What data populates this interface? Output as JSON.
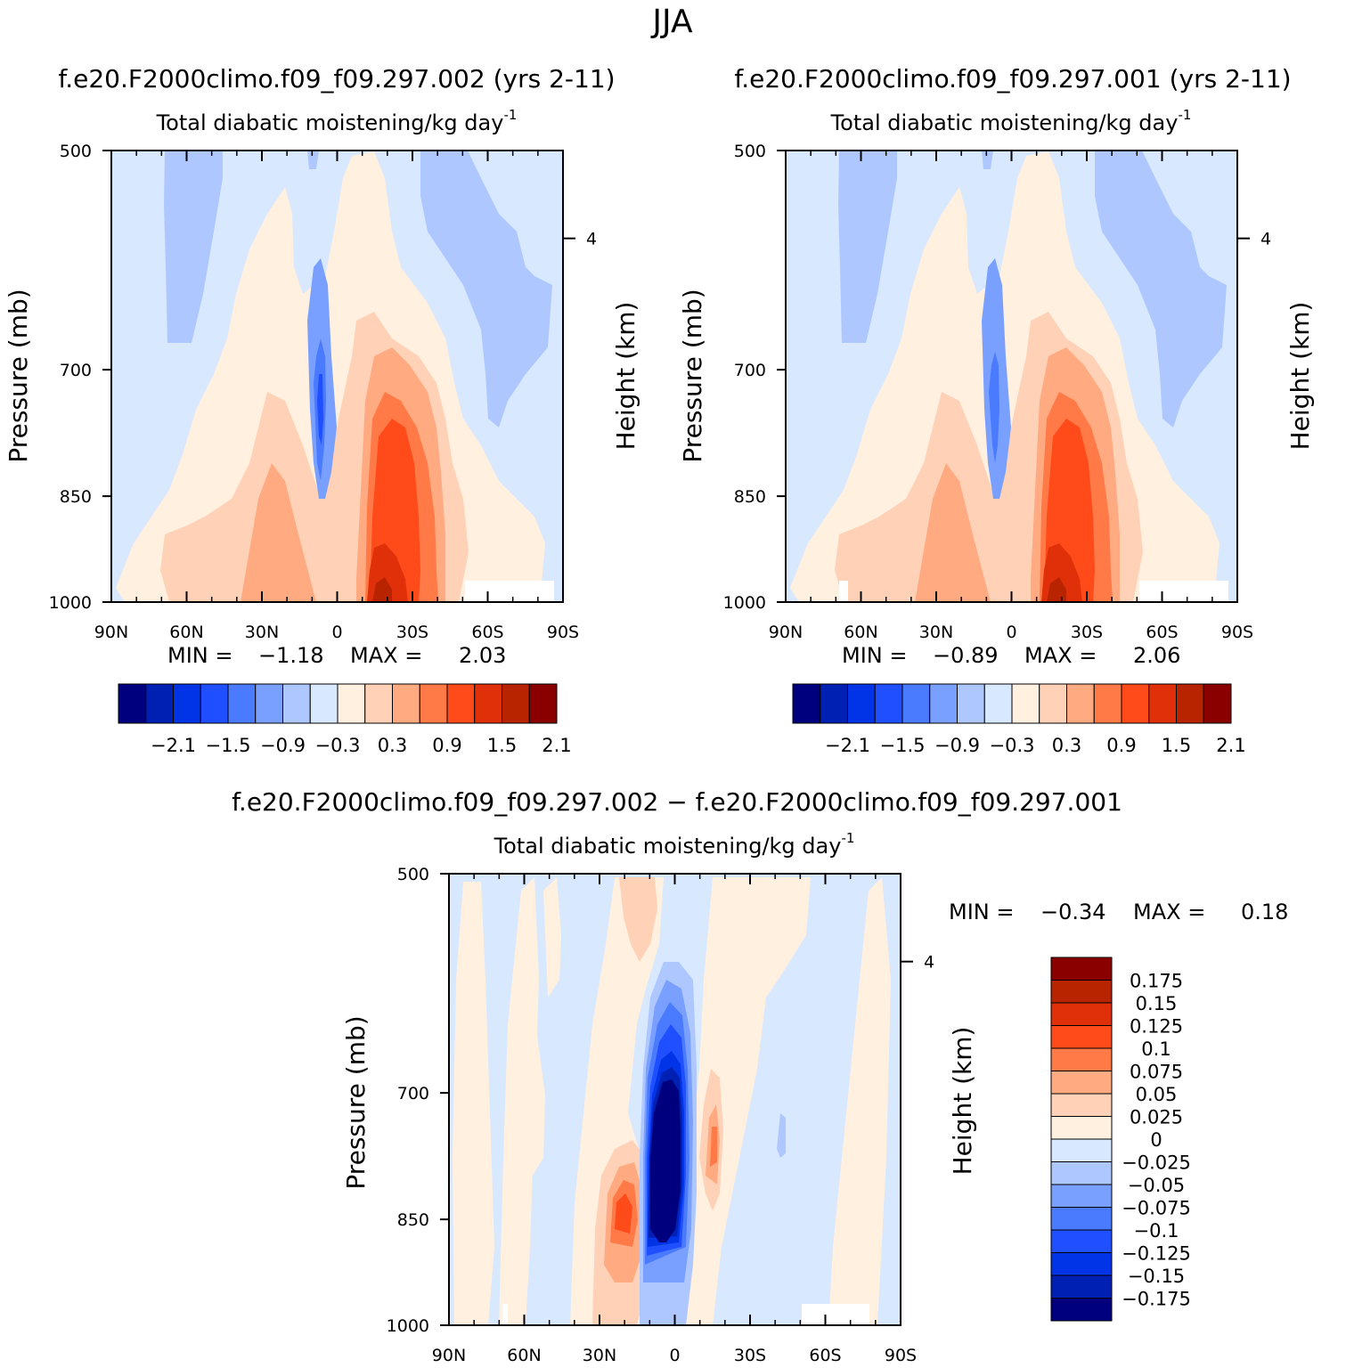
{
  "page_title": "JJA",
  "colors": {
    "main_levels": [
      "#00007f",
      "#0020b4",
      "#0034e6",
      "#1f4fff",
      "#4a7bff",
      "#7aa0ff",
      "#aec8ff",
      "#d8e8ff",
      "#fff0e0",
      "#ffd2b8",
      "#ffaa80",
      "#ff7a47",
      "#ff4a1a",
      "#e0300a",
      "#b82400",
      "#8a0000"
    ],
    "diff_levels": [
      "#00007f",
      "#0020b4",
      "#0034e6",
      "#1f4fff",
      "#4a7bff",
      "#7aa0ff",
      "#aec8ff",
      "#d8e8ff",
      "#fff0e0",
      "#ffd2b8",
      "#ffaa80",
      "#ff7a47",
      "#ff4a1a",
      "#e0300a",
      "#b82400",
      "#8a0000"
    ]
  },
  "chart_data": [
    {
      "type": "heatmap",
      "title": "f.e20.F2000climo.f09_f09.297.002 (yrs 2-11)",
      "subtitle": "Total diabatic moistening/kg day",
      "subtitle_exp": "-1",
      "xlabel": "",
      "ylabel": "Pressure (mb)",
      "ylabel_right": "Height (km)",
      "x_ticks": [
        "90N",
        "60N",
        "30N",
        "0",
        "30S",
        "60S",
        "90S"
      ],
      "y_ticks": [
        "500",
        "700",
        "850",
        "1000"
      ],
      "right_ticks": [
        "4"
      ],
      "ylim": [
        500,
        1000
      ],
      "min_label": "MIN =",
      "min_value": "−1.18",
      "max_label": "MAX =",
      "max_value": "2.03",
      "colorbar_labels": [
        "−2.1",
        "−1.5",
        "−0.9",
        "−0.3",
        "0.3",
        "0.9",
        "1.5",
        "2.1"
      ]
    },
    {
      "type": "heatmap",
      "title": "f.e20.F2000climo.f09_f09.297.001 (yrs 2-11)",
      "subtitle": "Total diabatic moistening/kg day",
      "subtitle_exp": "-1",
      "xlabel": "",
      "ylabel": "Pressure (mb)",
      "ylabel_right": "Height (km)",
      "x_ticks": [
        "90N",
        "60N",
        "30N",
        "0",
        "30S",
        "60S",
        "90S"
      ],
      "y_ticks": [
        "500",
        "700",
        "850",
        "1000"
      ],
      "right_ticks": [
        "4"
      ],
      "ylim": [
        500,
        1000
      ],
      "min_label": "MIN =",
      "min_value": "−0.89",
      "max_label": "MAX =",
      "max_value": "2.06",
      "colorbar_labels": [
        "−2.1",
        "−1.5",
        "−0.9",
        "−0.3",
        "0.3",
        "0.9",
        "1.5",
        "2.1"
      ]
    },
    {
      "type": "heatmap",
      "title": "f.e20.F2000climo.f09_f09.297.002 − f.e20.F2000climo.f09_f09.297.001",
      "subtitle": "Total diabatic moistening/kg day",
      "subtitle_exp": "-1",
      "xlabel": "",
      "ylabel": "Pressure (mb)",
      "ylabel_right": "Height (km)",
      "x_ticks": [
        "90N",
        "60N",
        "30N",
        "0",
        "30S",
        "60S",
        "90S"
      ],
      "y_ticks": [
        "500",
        "700",
        "850",
        "1000"
      ],
      "right_ticks": [
        "4"
      ],
      "ylim": [
        500,
        1000
      ],
      "min_label": "MIN =",
      "min_value": "−0.34",
      "max_label": "MAX =",
      "max_value": "0.18",
      "colorbar_labels": [
        "0.175",
        "0.15",
        "0.125",
        "0.1",
        "0.075",
        "0.05",
        "0.025",
        "0",
        "−0.025",
        "−0.05",
        "−0.075",
        "−0.1",
        "−0.125",
        "−0.15",
        "−0.175"
      ]
    }
  ]
}
